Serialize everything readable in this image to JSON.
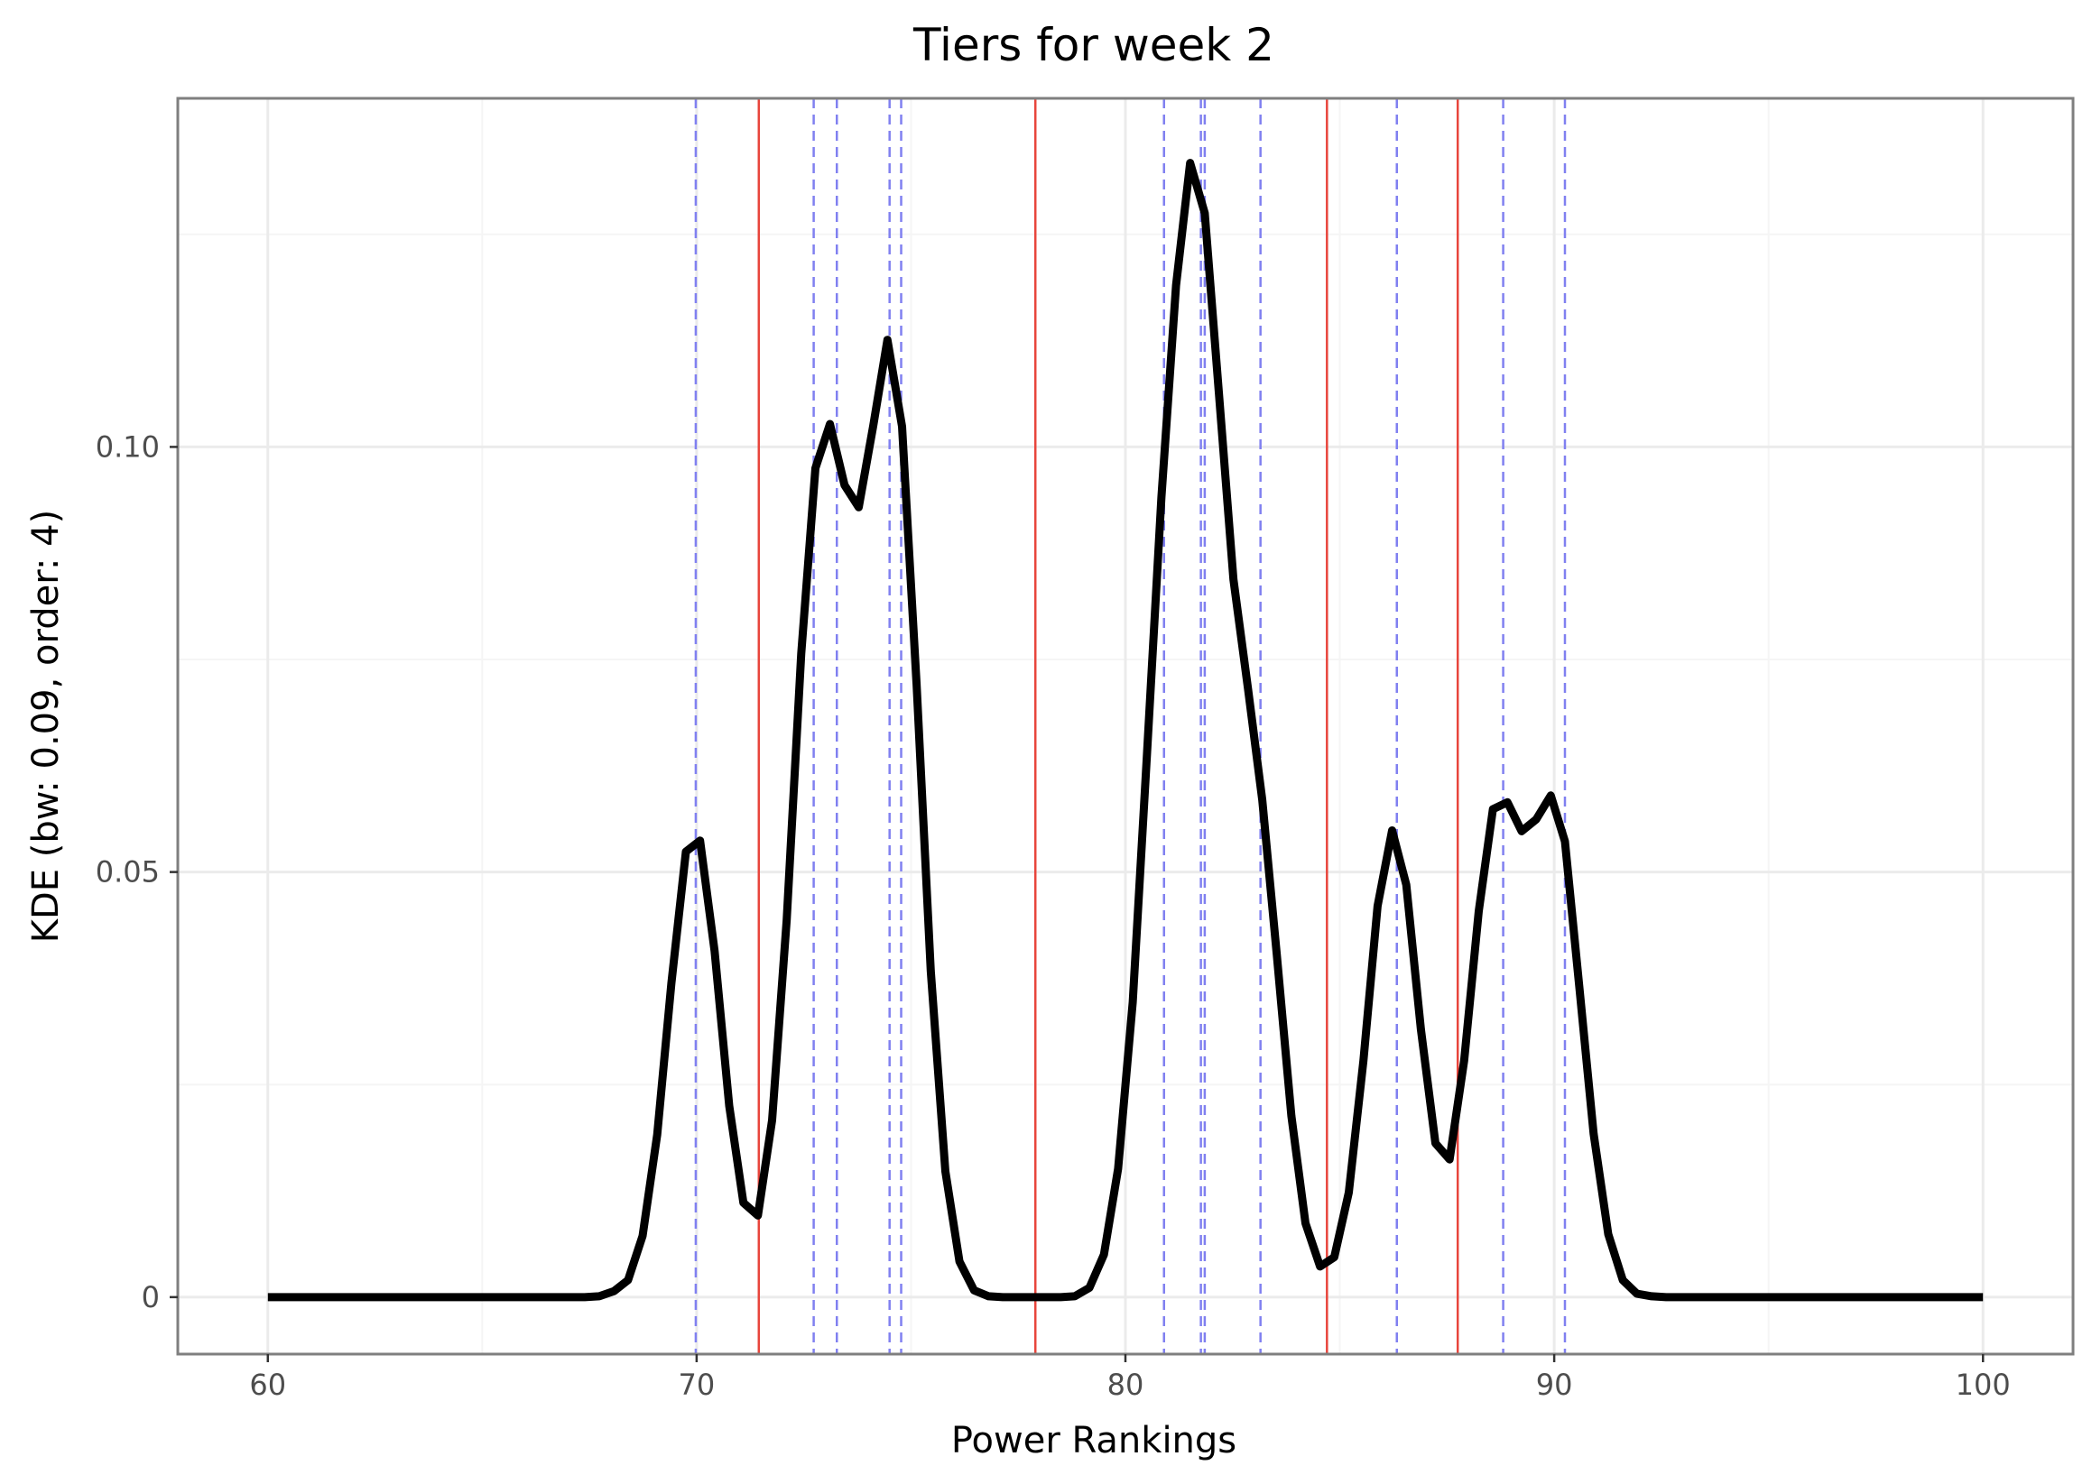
{
  "chart_data": {
    "type": "line",
    "title": "Tiers for week 2",
    "xlabel": "Power Rankings",
    "ylabel": "KDE (bw: 0.09, order: 4)",
    "xlim": [
      57.9,
      102.1
    ],
    "ylim": [
      -0.0067,
      0.141
    ],
    "x_ticks": [
      60,
      70,
      80,
      90,
      100
    ],
    "x_tick_labels": [
      "60",
      "70",
      "80",
      "90",
      "100"
    ],
    "x_minor_ticks": [
      65,
      75,
      85,
      95
    ],
    "y_ticks": [
      0,
      0.05,
      0.1
    ],
    "y_tick_labels": [
      "0",
      "0.05",
      "0.10"
    ],
    "y_minor_ticks": [
      0.025,
      0.075,
      0.125
    ],
    "grid": true,
    "colors": {
      "kde_line": "#000000",
      "tier_boundary": "#e8453c",
      "team_marker": "#8080f0",
      "grid_major": "#ebebeb",
      "grid_minor": "#f5f5f5",
      "panel_border": "#7f7f7f"
    },
    "series": [
      {
        "type": "line",
        "x": [
          60,
          60.34,
          60.67,
          61.01,
          61.34,
          61.68,
          62.02,
          62.35,
          62.69,
          63.03,
          63.36,
          63.7,
          64.03,
          64.37,
          64.71,
          65.04,
          65.38,
          65.71,
          66.05,
          66.39,
          66.72,
          67.06,
          67.39,
          67.73,
          68.07,
          68.4,
          68.74,
          69.08,
          69.41,
          69.75,
          70.08,
          70.42,
          70.76,
          71.09,
          71.43,
          71.76,
          72.1,
          72.44,
          72.77,
          73.11,
          73.45,
          73.78,
          74.12,
          74.45,
          74.79,
          75.13,
          75.46,
          75.8,
          76.13,
          76.47,
          76.81,
          77.14,
          77.48,
          77.82,
          78.15,
          78.49,
          78.82,
          79.16,
          79.5,
          79.83,
          80.17,
          80.5,
          80.84,
          81.18,
          81.51,
          81.85,
          82.18,
          82.52,
          82.86,
          83.19,
          83.53,
          83.87,
          84.2,
          84.54,
          84.87,
          85.21,
          85.55,
          85.88,
          86.22,
          86.55,
          86.89,
          87.23,
          87.56,
          87.9,
          88.24,
          88.57,
          88.91,
          89.24,
          89.58,
          89.92,
          90.25,
          90.59,
          90.92,
          91.26,
          91.6,
          91.93,
          92.27,
          92.61,
          92.94,
          93.28,
          93.61,
          93.95,
          94.29,
          94.62,
          94.96,
          95.29,
          95.63,
          95.97,
          96.3,
          96.64,
          96.97,
          97.31,
          97.65,
          97.98,
          98.32,
          98.66,
          98.99,
          99.33,
          99.66,
          100
        ],
        "y": [
          0,
          0,
          0,
          0,
          0,
          0,
          0,
          0,
          0,
          0,
          0,
          0,
          0,
          0,
          0,
          0,
          0,
          0,
          0,
          0,
          0,
          0,
          0,
          0.0001,
          0.0007,
          0.002,
          0.0072,
          0.0191,
          0.0369,
          0.0524,
          0.0537,
          0.0407,
          0.0225,
          0.0111,
          0.0096,
          0.0208,
          0.0444,
          0.0757,
          0.0975,
          0.1027,
          0.0955,
          0.0929,
          0.1025,
          0.1126,
          0.1024,
          0.0721,
          0.0384,
          0.0148,
          0.0042,
          0.0008,
          0.0001,
          0,
          0,
          0,
          0,
          0,
          0.0001,
          0.0011,
          0.005,
          0.0151,
          0.0347,
          0.0637,
          0.0941,
          0.119,
          0.1334,
          0.1275,
          0.1063,
          0.0844,
          0.0715,
          0.0585,
          0.0403,
          0.0213,
          0.0087,
          0.0036,
          0.0047,
          0.0123,
          0.0278,
          0.046,
          0.0549,
          0.0485,
          0.0315,
          0.0181,
          0.0162,
          0.0278,
          0.0454,
          0.0574,
          0.0582,
          0.0548,
          0.0562,
          0.059,
          0.0536,
          0.0363,
          0.0192,
          0.0074,
          0.002,
          0.0004,
          0.0001,
          0,
          0,
          0,
          0,
          0,
          0,
          0,
          0,
          0,
          0,
          0,
          0,
          0,
          0,
          0,
          0,
          0,
          0,
          0,
          0,
          0,
          0,
          0
        ]
      },
      {
        "type": "vline",
        "x": [
          71.45,
          77.9,
          84.7,
          87.75
        ]
      },
      {
        "type": "vline",
        "x": [
          69.98,
          72.73,
          73.27,
          74.5,
          74.77,
          80.9,
          81.76,
          81.85,
          83.15,
          86.33,
          88.81,
          90.25
        ]
      }
    ]
  }
}
